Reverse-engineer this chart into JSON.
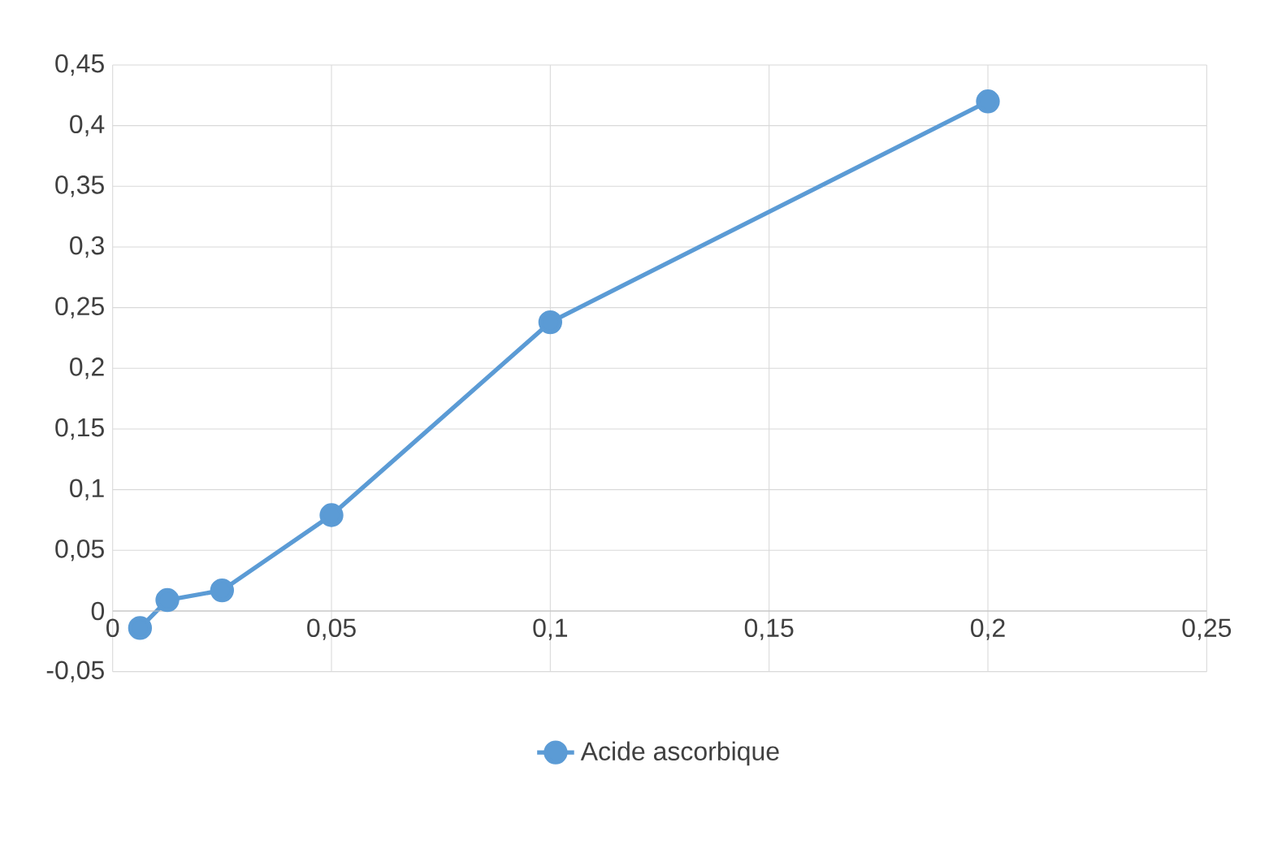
{
  "chart_data": {
    "type": "line",
    "x": [
      0.00625,
      0.0125,
      0.025,
      0.05,
      0.1,
      0.2
    ],
    "series": [
      {
        "name": "Acide ascorbique",
        "color": "#5b9bd5",
        "values": [
          -0.014,
          0.009,
          0.017,
          0.079,
          0.238,
          0.42
        ]
      }
    ],
    "xlim": [
      0,
      0.25
    ],
    "xticks": [
      0,
      {
        "value": 0.05,
        "label": "0,05"
      },
      {
        "value": 0.1,
        "label": "0,1"
      },
      {
        "value": 0.15,
        "label": "0,15"
      },
      {
        "value": 0.2,
        "label": "0,2"
      },
      {
        "value": 0.25,
        "label": "0,25"
      }
    ],
    "ylim": [
      -0.05,
      0.45
    ],
    "yticks": [
      {
        "value": -0.05,
        "label": "-0,05"
      },
      0,
      {
        "value": 0.05,
        "label": "0,05"
      },
      {
        "value": 0.1,
        "label": "0,1"
      },
      {
        "value": 0.15,
        "label": "0,15"
      },
      {
        "value": 0.2,
        "label": "0,2"
      },
      {
        "value": 0.25,
        "label": "0,25"
      },
      {
        "value": 0.3,
        "label": "0,3"
      },
      {
        "value": 0.35,
        "label": "0,35"
      },
      {
        "value": 0.4,
        "label": "0,4"
      },
      {
        "value": 0.45,
        "label": "0,45"
      }
    ],
    "grid": true,
    "legend": "bottom",
    "marker": "circle",
    "line_style": "solid"
  }
}
